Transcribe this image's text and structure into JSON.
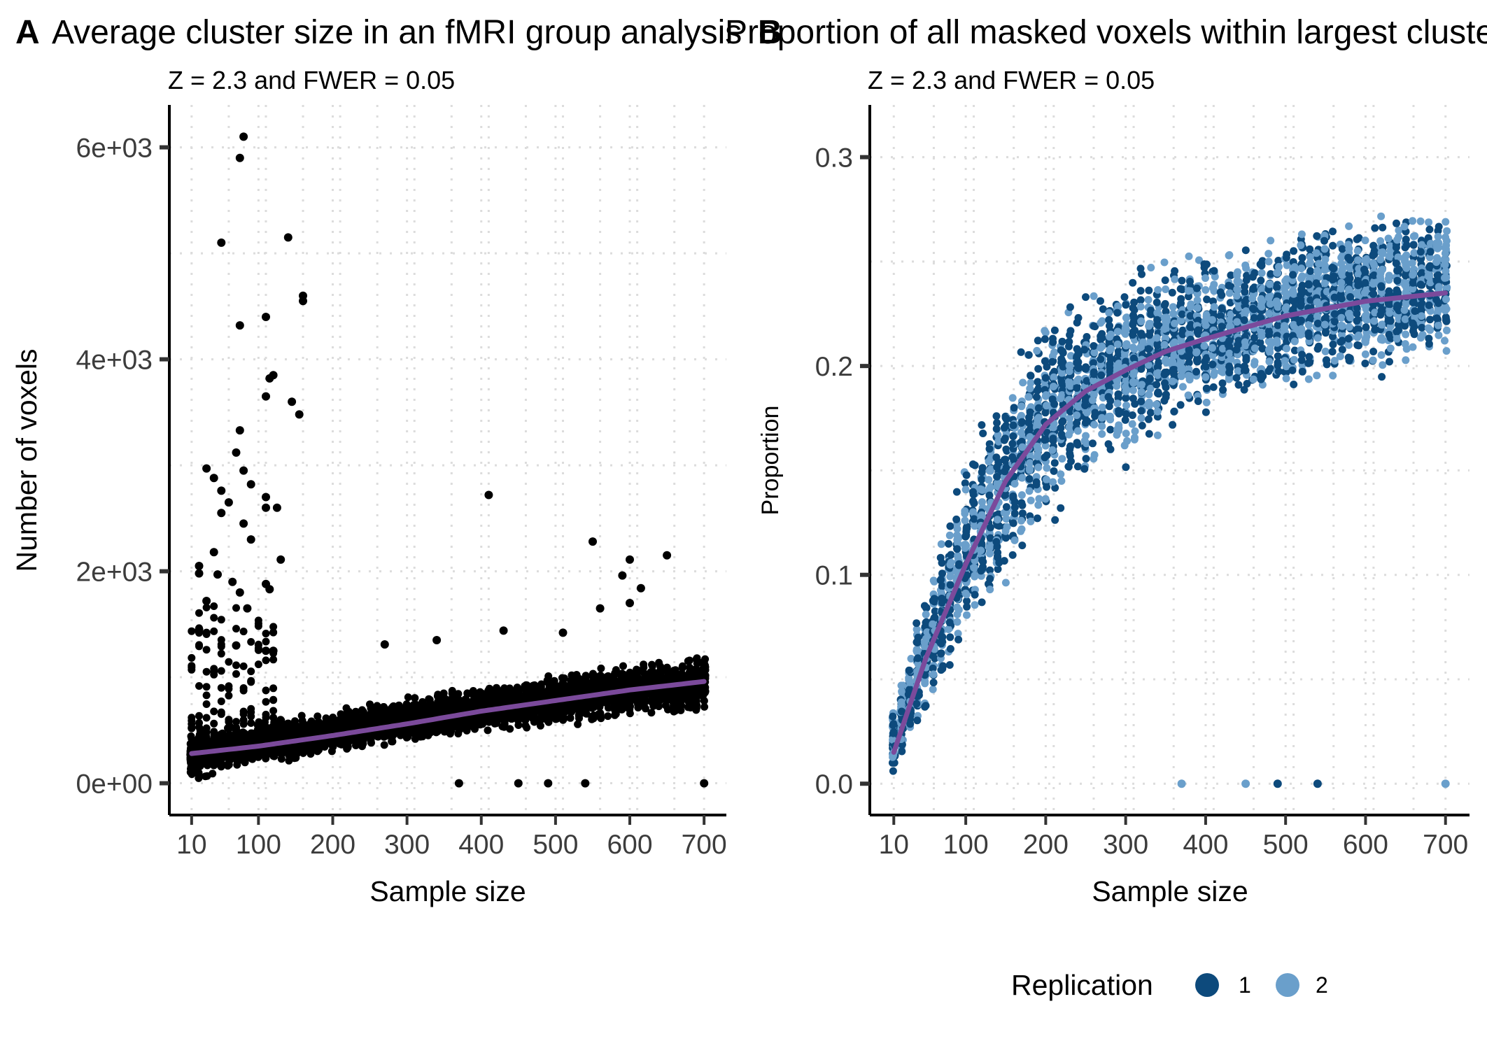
{
  "colors": {
    "panel_a_points": "#000000",
    "smooth_line": "#7b4a9b",
    "replication_1": "#0d4a7c",
    "replication_2": "#6a9fcb",
    "grid": "#dcdcdc"
  },
  "legend": {
    "title": "Replication",
    "items": [
      {
        "label": "1",
        "color": "#0d4a7c"
      },
      {
        "label": "2",
        "color": "#6a9fcb"
      }
    ]
  },
  "chart_data": [
    {
      "type": "scatter",
      "panel_tag": "A",
      "title": "Average cluster size in an fMRI group analysis",
      "subtitle": "Z = 2.3 and FWER = 0.05",
      "xlabel": "Sample size",
      "ylabel": "Number of voxels",
      "x_ticks": [
        10,
        100,
        200,
        300,
        400,
        500,
        600,
        700
      ],
      "x_tick_labels": [
        "10",
        "100",
        "200",
        "300",
        "400",
        "500",
        "600",
        "700"
      ],
      "y_ticks": [
        0,
        2000,
        4000,
        6000
      ],
      "y_tick_labels": [
        "0e+00",
        "2e+03",
        "4e+03",
        "6e+03"
      ],
      "xlim": [
        -20,
        730
      ],
      "ylim": [
        -300,
        6400
      ],
      "grid": "dotted",
      "bulk_band": {
        "x": [
          10,
          50,
          100,
          200,
          300,
          400,
          500,
          600,
          700
        ],
        "lower": [
          0,
          80,
          150,
          250,
          350,
          450,
          520,
          600,
          650
        ],
        "upper": [
          500,
          560,
          620,
          700,
          850,
          950,
          1050,
          1150,
          1250
        ]
      },
      "outliers": [
        {
          "x": 80,
          "y": 6100
        },
        {
          "x": 75,
          "y": 5900
        },
        {
          "x": 50,
          "y": 5100
        },
        {
          "x": 140,
          "y": 5150
        },
        {
          "x": 160,
          "y": 4600
        },
        {
          "x": 160,
          "y": 4550
        },
        {
          "x": 110,
          "y": 4400
        },
        {
          "x": 75,
          "y": 4320
        },
        {
          "x": 120,
          "y": 3850
        },
        {
          "x": 115,
          "y": 3820
        },
        {
          "x": 110,
          "y": 3650
        },
        {
          "x": 145,
          "y": 3600
        },
        {
          "x": 155,
          "y": 3480
        },
        {
          "x": 75,
          "y": 3330
        },
        {
          "x": 70,
          "y": 3120
        },
        {
          "x": 30,
          "y": 2970
        },
        {
          "x": 80,
          "y": 2950
        },
        {
          "x": 40,
          "y": 2880
        },
        {
          "x": 90,
          "y": 2820
        },
        {
          "x": 50,
          "y": 2760
        },
        {
          "x": 110,
          "y": 2700
        },
        {
          "x": 60,
          "y": 2650
        },
        {
          "x": 110,
          "y": 2600
        },
        {
          "x": 125,
          "y": 2600
        },
        {
          "x": 50,
          "y": 2550
        },
        {
          "x": 80,
          "y": 2450
        },
        {
          "x": 90,
          "y": 2300
        },
        {
          "x": 40,
          "y": 2180
        },
        {
          "x": 130,
          "y": 2110
        },
        {
          "x": 20,
          "y": 2050
        },
        {
          "x": 20,
          "y": 1980
        },
        {
          "x": 45,
          "y": 1970
        },
        {
          "x": 65,
          "y": 1900
        },
        {
          "x": 110,
          "y": 1880
        },
        {
          "x": 75,
          "y": 1800
        },
        {
          "x": 115,
          "y": 1830
        },
        {
          "x": 30,
          "y": 1720
        },
        {
          "x": 85,
          "y": 1650
        },
        {
          "x": 20,
          "y": 1450
        },
        {
          "x": 70,
          "y": 1300
        },
        {
          "x": 110,
          "y": 1250
        },
        {
          "x": 120,
          "y": 1250
        },
        {
          "x": 410,
          "y": 2720
        },
        {
          "x": 550,
          "y": 2280
        },
        {
          "x": 600,
          "y": 2110
        },
        {
          "x": 650,
          "y": 2150
        },
        {
          "x": 590,
          "y": 1960
        },
        {
          "x": 615,
          "y": 1840
        },
        {
          "x": 560,
          "y": 1650
        },
        {
          "x": 600,
          "y": 1700
        },
        {
          "x": 270,
          "y": 1310
        },
        {
          "x": 340,
          "y": 1350
        },
        {
          "x": 510,
          "y": 1420
        },
        {
          "x": 430,
          "y": 1440
        },
        {
          "x": 370,
          "y": 0
        },
        {
          "x": 450,
          "y": 0
        },
        {
          "x": 490,
          "y": 0
        },
        {
          "x": 540,
          "y": 0
        },
        {
          "x": 700,
          "y": 0
        }
      ],
      "smooth": {
        "x": [
          10,
          100,
          200,
          300,
          400,
          500,
          600,
          700
        ],
        "y": [
          280,
          350,
          450,
          560,
          680,
          780,
          880,
          960
        ]
      }
    },
    {
      "type": "scatter",
      "panel_tag": "B",
      "title": "Proportion of all masked voxels within largest cluster",
      "subtitle": "Z = 2.3 and FWER = 0.05",
      "xlabel": "Sample size",
      "ylabel": "Proportion",
      "x_ticks": [
        10,
        100,
        200,
        300,
        400,
        500,
        600,
        700
      ],
      "x_tick_labels": [
        "10",
        "100",
        "200",
        "300",
        "400",
        "500",
        "600",
        "700"
      ],
      "y_ticks": [
        0.0,
        0.1,
        0.2,
        0.3
      ],
      "y_tick_labels": [
        "0.0",
        "0.1",
        "0.2",
        "0.3"
      ],
      "xlim": [
        -20,
        730
      ],
      "ylim": [
        -0.015,
        0.325
      ],
      "grid": "dotted",
      "band": {
        "x": [
          10,
          50,
          100,
          150,
          200,
          250,
          300,
          400,
          500,
          600,
          700
        ],
        "lower": [
          0.0,
          0.03,
          0.06,
          0.09,
          0.12,
          0.14,
          0.15,
          0.17,
          0.18,
          0.19,
          0.2
        ],
        "upper": [
          0.04,
          0.1,
          0.16,
          0.2,
          0.23,
          0.24,
          0.25,
          0.26,
          0.27,
          0.28,
          0.28
        ]
      },
      "zero_points": [
        {
          "x": 370,
          "y": 0,
          "replication": 2
        },
        {
          "x": 450,
          "y": 0,
          "replication": 2
        },
        {
          "x": 490,
          "y": 0,
          "replication": 1
        },
        {
          "x": 540,
          "y": 0,
          "replication": 1
        },
        {
          "x": 700,
          "y": 0,
          "replication": 2
        }
      ],
      "smooth": {
        "x": [
          10,
          50,
          100,
          150,
          200,
          250,
          300,
          350,
          400,
          500,
          600,
          700
        ],
        "y": [
          0.015,
          0.06,
          0.105,
          0.145,
          0.172,
          0.188,
          0.198,
          0.207,
          0.213,
          0.224,
          0.231,
          0.235
        ]
      }
    }
  ]
}
